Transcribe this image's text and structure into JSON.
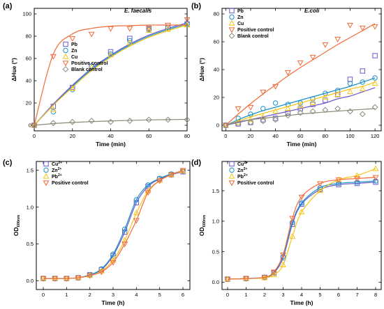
{
  "chart_data": [
    {
      "panel": "(a)",
      "type": "scatter",
      "annotation": "E. faecalis",
      "xlabel": "Time (min)",
      "ylabel": "ΔHue (°)",
      "xlim": [
        0,
        80
      ],
      "ylim": [
        -5,
        105
      ],
      "xticks": [
        0,
        20,
        40,
        60,
        80
      ],
      "yticks": [
        0,
        20,
        40,
        60,
        80,
        100
      ],
      "legend_position": "bottom-right",
      "series": [
        {
          "name": "Pb",
          "color": "#6a5acd",
          "marker": "square",
          "x": [
            0,
            10,
            20,
            30,
            40,
            50,
            60,
            70,
            80
          ],
          "y": [
            0,
            17,
            34,
            53,
            66,
            78,
            87,
            88,
            91
          ],
          "fit_y": [
            0,
            19,
            36,
            51,
            63,
            73,
            81,
            87,
            92
          ]
        },
        {
          "name": "Zn",
          "color": "#1e90c8",
          "marker": "circle",
          "x": [
            0,
            10,
            20,
            30,
            40,
            50,
            60,
            70,
            80
          ],
          "y": [
            0,
            12,
            32,
            53,
            64,
            76,
            86,
            88,
            91
          ],
          "fit_y": [
            0,
            18,
            35,
            50,
            62,
            72,
            80,
            86,
            91
          ]
        },
        {
          "name": "Cu",
          "color": "#f5c518",
          "marker": "triangle-up",
          "x": [
            0,
            10,
            20,
            30,
            40,
            50,
            60,
            70,
            80
          ],
          "y": [
            0,
            14,
            33,
            52,
            63,
            74,
            85,
            86,
            90
          ],
          "fit_y": [
            0,
            18,
            34,
            49,
            61,
            71,
            79,
            85,
            90
          ]
        },
        {
          "name": "Positive control",
          "color": "#f26b3a",
          "marker": "triangle-down",
          "x": [
            0,
            10,
            20,
            30,
            40,
            50,
            60,
            70,
            80
          ],
          "y": [
            0,
            62,
            78,
            82,
            87,
            87,
            87,
            90,
            95
          ],
          "fit_y": [
            0,
            64,
            82,
            87,
            89,
            89.5,
            90,
            90,
            90
          ]
        },
        {
          "name": "Blank control",
          "color": "#8a8a7a",
          "marker": "diamond",
          "x": [
            0,
            10,
            20,
            30,
            40,
            50,
            60,
            70,
            80
          ],
          "y": [
            0,
            2,
            3,
            4,
            3,
            4,
            5,
            5,
            5
          ],
          "fit_y": [
            0,
            1.5,
            2.5,
            3.3,
            3.9,
            4.4,
            4.8,
            5.1,
            5.3
          ]
        }
      ]
    },
    {
      "panel": "(b)",
      "type": "scatter",
      "annotation": "E.coli",
      "xlabel": "Time (min)",
      "ylabel": "ΔHue (°)",
      "xlim": [
        -3,
        125
      ],
      "ylim": [
        -4,
        84
      ],
      "xticks": [
        0,
        20,
        40,
        60,
        80,
        100,
        120
      ],
      "yticks": [
        0,
        20,
        40,
        60,
        80
      ],
      "legend_position": "top-left",
      "series": [
        {
          "name": "Pb",
          "color": "#6a5acd",
          "marker": "square",
          "x": [
            0,
            10,
            20,
            30,
            40,
            50,
            60,
            70,
            80,
            90,
            100,
            110,
            120
          ],
          "y": [
            0,
            1,
            2,
            4,
            5,
            9,
            12,
            15,
            18,
            22,
            33,
            39,
            50
          ],
          "fit_y": [
            0,
            2,
            4,
            6,
            8,
            10,
            12,
            14,
            16,
            19,
            21,
            24,
            27
          ]
        },
        {
          "name": "Zn",
          "color": "#1e90c8",
          "marker": "circle",
          "x": [
            0,
            10,
            20,
            30,
            40,
            50,
            60,
            70,
            80,
            90,
            100,
            110,
            120
          ],
          "y": [
            0,
            5,
            8,
            12,
            16,
            15,
            16,
            19,
            23,
            25,
            30,
            31,
            34
          ],
          "fit_y": [
            0,
            4,
            7.5,
            10.5,
            13,
            15.5,
            18,
            20.5,
            23,
            25.5,
            28,
            31,
            34
          ]
        },
        {
          "name": "Cu",
          "color": "#f5c518",
          "marker": "triangle-up",
          "x": [
            0,
            10,
            20,
            30,
            40,
            50,
            60,
            70,
            80,
            90,
            100,
            110,
            120
          ],
          "y": [
            0,
            2,
            4,
            6,
            10,
            12,
            14,
            16,
            20,
            22,
            24,
            26,
            30
          ],
          "fit_y": [
            0,
            3,
            6,
            8.5,
            11,
            13.5,
            16,
            18.5,
            21,
            23.5,
            26,
            28,
            31
          ]
        },
        {
          "name": "Positive control",
          "color": "#f26b3a",
          "marker": "triangle-down",
          "x": [
            0,
            10,
            20,
            30,
            40,
            50,
            60,
            70,
            80,
            90,
            100,
            110,
            120
          ],
          "y": [
            0,
            12,
            13,
            24,
            28,
            38,
            45,
            49,
            58,
            62,
            72,
            70,
            71
          ],
          "fit_y": [
            0,
            8,
            15.5,
            22.5,
            29,
            35.5,
            41.5,
            47,
            52.5,
            58,
            63,
            68,
            73
          ]
        },
        {
          "name": "Blank control",
          "color": "#8a8a7a",
          "marker": "diamond",
          "x": [
            0,
            10,
            20,
            30,
            40,
            50,
            60,
            70,
            80,
            90,
            100,
            110,
            120
          ],
          "y": [
            0,
            1,
            2,
            3,
            4,
            7,
            9,
            10,
            11,
            12,
            10,
            8,
            13
          ],
          "fit_y": [
            0,
            2.5,
            4,
            5,
            6,
            7,
            8,
            8.8,
            9.5,
            10.2,
            10.8,
            11.4,
            12
          ]
        }
      ]
    },
    {
      "panel": "(c)",
      "type": "scatter",
      "xlabel": "Time (h)",
      "ylabel": "OD600nm",
      "xlim": [
        -0.3,
        6.3
      ],
      "ylim": [
        -0.12,
        1.62
      ],
      "xticks": [
        0,
        1,
        2,
        3,
        4,
        5,
        6
      ],
      "yticks": [
        0.0,
        0.5,
        1.0,
        1.5
      ],
      "legend_position": "top-left",
      "series": [
        {
          "name": "Cu2+",
          "color": "#6a5acd",
          "marker": "square",
          "x": [
            0,
            0.5,
            1,
            1.5,
            2,
            2.5,
            3,
            3.5,
            4,
            4.5,
            5,
            5.5,
            6
          ],
          "y": [
            0.03,
            0.03,
            0.03,
            0.04,
            0.08,
            0.15,
            0.34,
            0.66,
            1.06,
            1.28,
            1.38,
            1.44,
            1.48
          ]
        },
        {
          "name": "Zn2+",
          "color": "#1e90c8",
          "marker": "circle",
          "x": [
            0,
            0.5,
            1,
            1.5,
            2,
            2.5,
            3,
            3.5,
            4,
            4.5,
            5,
            5.5,
            6
          ],
          "y": [
            0.03,
            0.03,
            0.03,
            0.04,
            0.08,
            0.16,
            0.36,
            0.7,
            1.1,
            1.3,
            1.39,
            1.45,
            1.49
          ]
        },
        {
          "name": "Pb2+",
          "color": "#f5c518",
          "marker": "triangle-up",
          "x": [
            0,
            0.5,
            1,
            1.5,
            2,
            2.5,
            3,
            3.5,
            4,
            4.5,
            5,
            5.5,
            6
          ],
          "y": [
            0.03,
            0.03,
            0.03,
            0.04,
            0.07,
            0.13,
            0.28,
            0.55,
            0.92,
            1.22,
            1.36,
            1.44,
            1.49
          ]
        },
        {
          "name": "Positive control",
          "color": "#f26b3a",
          "marker": "triangle-down",
          "x": [
            0,
            0.5,
            1,
            1.5,
            2,
            2.5,
            3,
            3.5,
            4,
            4.5,
            5,
            5.5,
            6
          ],
          "y": [
            0.03,
            0.03,
            0.03,
            0.04,
            0.07,
            0.12,
            0.25,
            0.5,
            0.82,
            1.2,
            1.36,
            1.44,
            1.5
          ]
        }
      ]
    },
    {
      "panel": "(d)",
      "type": "scatter",
      "xlabel": "Time (h)",
      "ylabel": "OD600nm",
      "xlim": [
        -0.3,
        8.3
      ],
      "ylim": [
        -0.12,
        1.98
      ],
      "xticks": [
        0,
        1,
        2,
        3,
        4,
        5,
        6,
        7,
        8
      ],
      "yticks": [
        0.0,
        0.5,
        1.0,
        1.5
      ],
      "legend_position": "top-left",
      "series": [
        {
          "name": "Cu2+",
          "color": "#6a5acd",
          "marker": "square",
          "x": [
            0,
            1,
            2,
            2.5,
            3,
            3.5,
            4,
            5,
            6,
            7,
            8
          ],
          "y": [
            0.05,
            0.06,
            0.08,
            0.15,
            0.4,
            0.95,
            1.28,
            1.52,
            1.6,
            1.62,
            1.64
          ]
        },
        {
          "name": "Zn2+",
          "color": "#1e90c8",
          "marker": "circle",
          "x": [
            0,
            1,
            2,
            2.5,
            3,
            3.5,
            4,
            5,
            6,
            7,
            8
          ],
          "y": [
            0.05,
            0.06,
            0.08,
            0.16,
            0.42,
            0.98,
            1.3,
            1.55,
            1.62,
            1.64,
            1.66
          ]
        },
        {
          "name": "Pb2+",
          "color": "#f5c518",
          "marker": "triangle-up",
          "x": [
            0,
            1,
            2,
            2.5,
            3,
            3.5,
            4,
            5,
            6,
            7,
            8
          ],
          "y": [
            0.05,
            0.06,
            0.07,
            0.12,
            0.28,
            0.75,
            1.15,
            1.5,
            1.68,
            1.75,
            1.86
          ]
        },
        {
          "name": "Positive control",
          "color": "#f26b3a",
          "marker": "triangle-down",
          "x": [
            0,
            1,
            2,
            2.5,
            3,
            3.5,
            4,
            5,
            6,
            7,
            8
          ],
          "y": [
            0.05,
            0.06,
            0.08,
            0.17,
            0.45,
            1.05,
            1.4,
            1.62,
            1.68,
            1.7,
            1.72
          ]
        }
      ]
    }
  ]
}
